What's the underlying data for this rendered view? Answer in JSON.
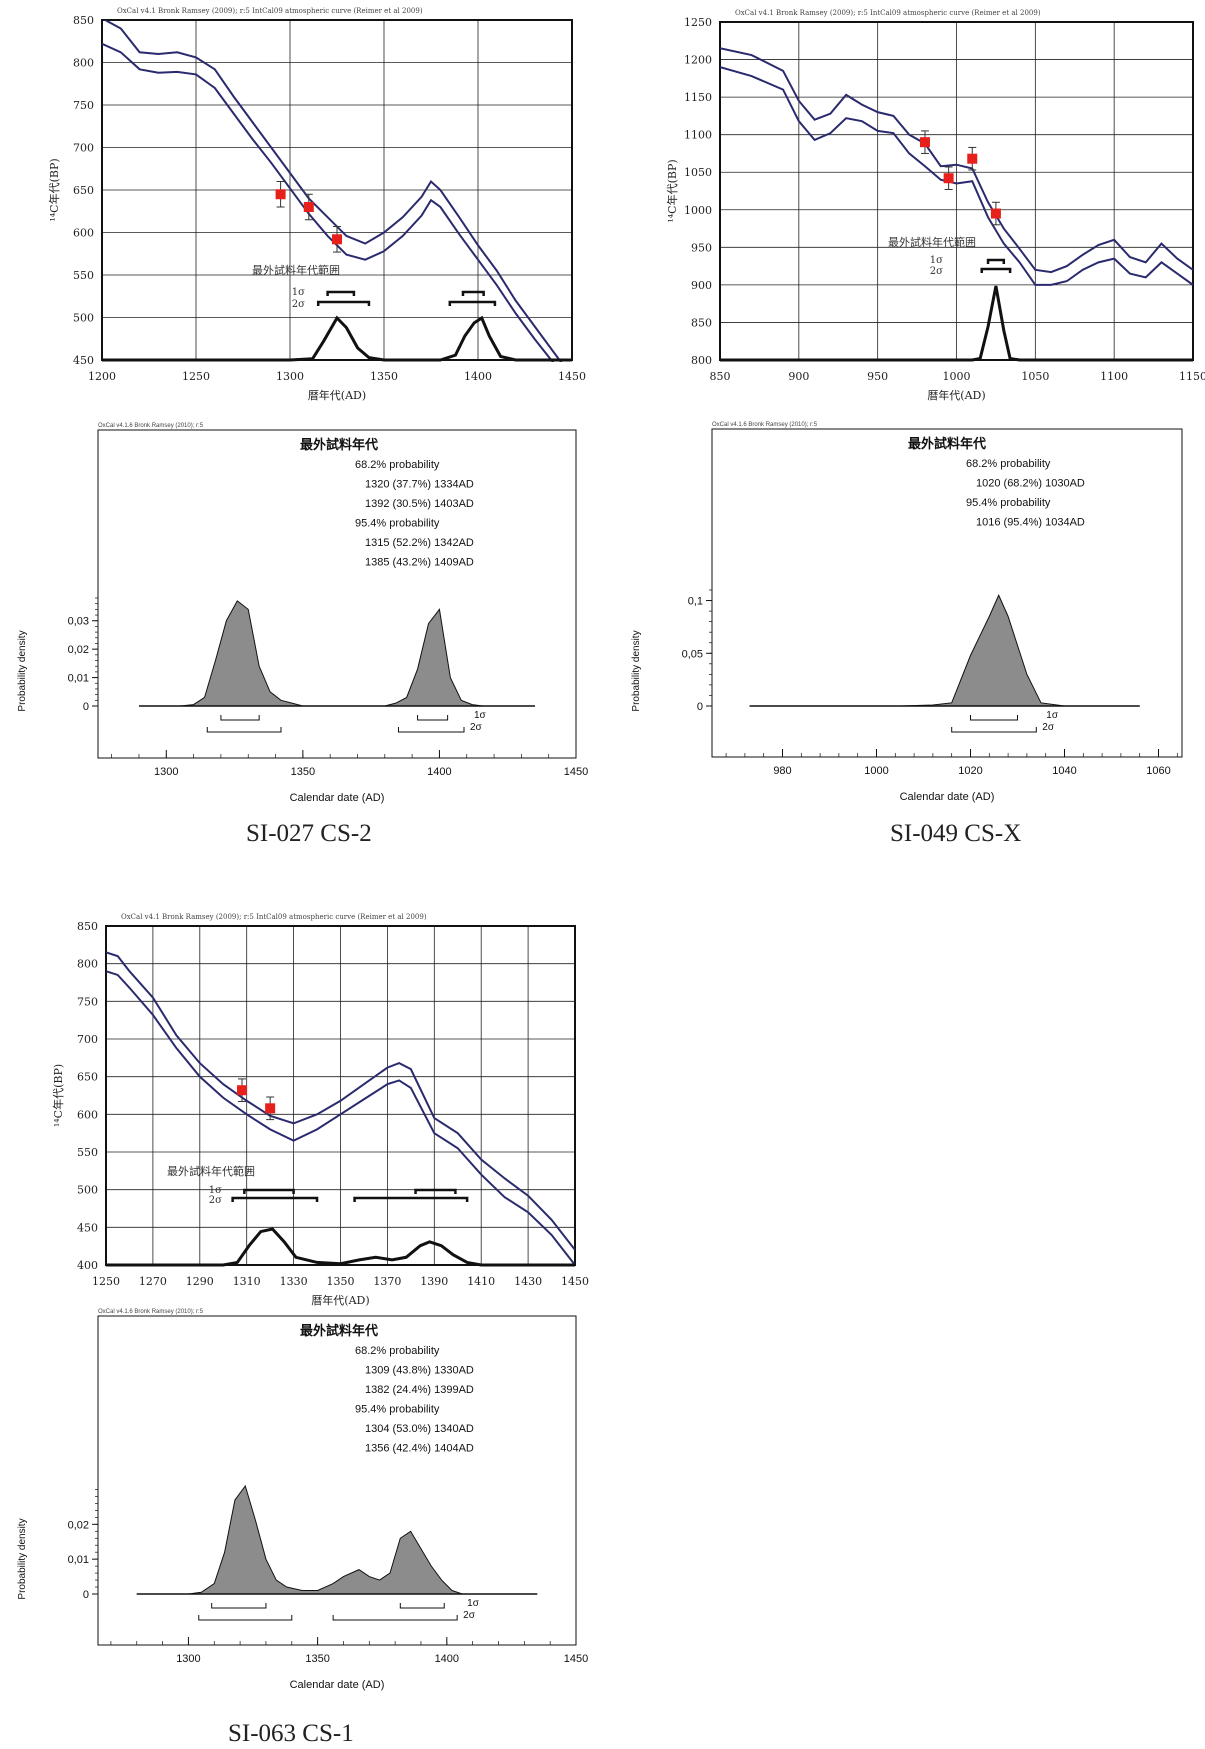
{
  "captions": [
    "SI-027 CS-2",
    "SI-049 CS-X",
    "SI-063 CS-1"
  ],
  "chart_data": [
    {
      "type": "line",
      "sample": "SI-027 CS-2",
      "header_note": "OxCal v4.1 Bronk Ramsey (2009); r:5 IntCal09 atmospheric curve (Reimer et al 2009)",
      "xlabel": "暦年代(AD)",
      "ylabel": "¹⁴C年代(BP)",
      "xlim": [
        1200,
        1450
      ],
      "ylim": [
        450,
        850
      ],
      "xticks": [
        1200,
        1250,
        1300,
        1350,
        1400,
        1450
      ],
      "yticks": [
        450,
        500,
        550,
        600,
        650,
        700,
        750,
        800,
        850
      ],
      "grid": true,
      "range_label": "最外試料年代範囲",
      "sigma_labels": [
        "1σ",
        "2σ"
      ],
      "series": [
        {
          "x": [
            1200,
            1210,
            1220,
            1230,
            1240,
            1250,
            1260,
            1270,
            1280,
            1290,
            1300,
            1310,
            1320,
            1330,
            1340,
            1350,
            1360,
            1370,
            1375,
            1380,
            1390,
            1400,
            1410,
            1420,
            1430,
            1440,
            1450
          ],
          "y": [
            852,
            840,
            812,
            810,
            812,
            806,
            792,
            760,
            730,
            700,
            670,
            640,
            618,
            596,
            587,
            600,
            618,
            642,
            660,
            650,
            618,
            585,
            555,
            520,
            490,
            460,
            430
          ]
        },
        {
          "x": [
            1200,
            1210,
            1220,
            1230,
            1240,
            1250,
            1260,
            1270,
            1280,
            1290,
            1300,
            1310,
            1320,
            1330,
            1340,
            1350,
            1360,
            1370,
            1375,
            1380,
            1390,
            1400,
            1410,
            1420,
            1430,
            1440,
            1450
          ],
          "y": [
            822,
            812,
            792,
            788,
            789,
            786,
            770,
            740,
            710,
            682,
            652,
            622,
            596,
            574,
            568,
            578,
            596,
            620,
            638,
            630,
            598,
            568,
            538,
            505,
            475,
            447,
            420
          ]
        }
      ],
      "samples": [
        {
          "x": 1295,
          "y": 645,
          "err": 15
        },
        {
          "x": 1310,
          "y": 630,
          "err": 15
        },
        {
          "x": 1325,
          "y": 592,
          "err": 15
        }
      ],
      "sigma1_ranges": [
        [
          1320,
          1334
        ],
        [
          1392,
          1403
        ]
      ],
      "sigma2_ranges": [
        [
          1315,
          1342
        ],
        [
          1385,
          1409
        ]
      ],
      "density_curve": {
        "x": [
          1200,
          1300,
          1312,
          1318,
          1325,
          1330,
          1336,
          1342,
          1350,
          1360,
          1380,
          1388,
          1393,
          1398,
          1402,
          1406,
          1412,
          1420,
          1450
        ],
        "y": [
          0,
          0,
          0.001,
          0.016,
          0.035,
          0.027,
          0.01,
          0.002,
          0,
          0,
          0,
          0.004,
          0.02,
          0.031,
          0.035,
          0.02,
          0.003,
          0,
          0
        ]
      }
    },
    {
      "type": "area",
      "sample": "SI-027 CS-2",
      "header_note": "OxCal v4.1.6 Bronk Ramsey (2010); r:5",
      "title": "最外試料年代",
      "prob_lines": [
        "68.2% probability",
        "1320 (37.7%) 1334AD",
        "1392 (30.5%) 1403AD",
        "95.4% probability",
        "1315 (52.2%) 1342AD",
        "1385 (43.2%) 1409AD"
      ],
      "xlabel": "Calendar date (AD)",
      "ylabel": "Probability density",
      "xlim": [
        1275,
        1450
      ],
      "xticks": [
        1300,
        1350,
        1400,
        1450
      ],
      "yticks": [
        0,
        0.01,
        0.02,
        0.03
      ],
      "ytick_labels": [
        "0",
        "0,01",
        "0,02",
        "0,03"
      ],
      "ylim": [
        0,
        0.038
      ],
      "sigma_labels": [
        "1σ",
        "2σ"
      ],
      "x": [
        1290,
        1305,
        1310,
        1314,
        1318,
        1322,
        1326,
        1330,
        1334,
        1338,
        1342,
        1346,
        1350,
        1370,
        1380,
        1384,
        1388,
        1392,
        1396,
        1400,
        1404,
        1408,
        1412,
        1416,
        1435
      ],
      "values": [
        0,
        0,
        0.0005,
        0.003,
        0.016,
        0.03,
        0.037,
        0.034,
        0.014,
        0.005,
        0.002,
        0.001,
        0,
        0,
        0,
        0.001,
        0.003,
        0.013,
        0.029,
        0.034,
        0.01,
        0.002,
        0.0005,
        0,
        0
      ],
      "sigma1_ranges": [
        [
          1320,
          1334
        ],
        [
          1392,
          1403
        ]
      ],
      "sigma2_ranges": [
        [
          1315,
          1342
        ],
        [
          1385,
          1409
        ]
      ]
    },
    {
      "type": "line",
      "sample": "SI-049 CS-X",
      "header_note": "OxCal v4.1 Bronk Ramsey (2009); r:5 IntCal09 atmospheric curve (Reimer et al 2009)",
      "xlabel": "暦年代(AD)",
      "ylabel": "¹⁴C年代(BP)",
      "xlim": [
        850,
        1150
      ],
      "ylim": [
        800,
        1250
      ],
      "xticks": [
        850,
        900,
        950,
        1000,
        1050,
        1100,
        1150
      ],
      "yticks": [
        800,
        850,
        900,
        950,
        1000,
        1050,
        1100,
        1150,
        1200,
        1250
      ],
      "grid": true,
      "range_label": "最外試料年代範囲",
      "sigma_labels": [
        "1σ",
        "2σ"
      ],
      "series": [
        {
          "x": [
            850,
            870,
            890,
            900,
            910,
            920,
            930,
            940,
            950,
            960,
            970,
            980,
            990,
            1000,
            1010,
            1020,
            1030,
            1040,
            1050,
            1060,
            1070,
            1080,
            1090,
            1100,
            1110,
            1120,
            1130,
            1140,
            1150
          ],
          "y": [
            1215,
            1206,
            1185,
            1145,
            1120,
            1128,
            1153,
            1140,
            1130,
            1125,
            1100,
            1088,
            1058,
            1060,
            1055,
            1010,
            975,
            948,
            920,
            917,
            925,
            940,
            953,
            960,
            937,
            930,
            955,
            935,
            920
          ]
        },
        {
          "x": [
            850,
            870,
            890,
            900,
            910,
            920,
            930,
            940,
            950,
            960,
            970,
            980,
            990,
            1000,
            1010,
            1020,
            1030,
            1040,
            1050,
            1060,
            1070,
            1080,
            1090,
            1100,
            1110,
            1120,
            1130,
            1140,
            1150
          ],
          "y": [
            1190,
            1178,
            1160,
            1118,
            1093,
            1102,
            1122,
            1118,
            1105,
            1102,
            1075,
            1058,
            1040,
            1035,
            1038,
            990,
            955,
            930,
            900,
            900,
            905,
            920,
            930,
            935,
            915,
            910,
            930,
            915,
            900
          ]
        }
      ],
      "samples": [
        {
          "x": 980,
          "y": 1090,
          "err": 15
        },
        {
          "x": 995,
          "y": 1042,
          "err": 15
        },
        {
          "x": 1010,
          "y": 1068,
          "err": 15
        },
        {
          "x": 1025,
          "y": 995,
          "err": 15
        }
      ],
      "sigma1_ranges": [
        [
          1020,
          1030
        ]
      ],
      "sigma2_ranges": [
        [
          1016,
          1034
        ]
      ],
      "density_curve": {
        "x": [
          850,
          1010,
          1015,
          1020,
          1025,
          1030,
          1034,
          1040,
          1150
        ],
        "y": [
          0,
          0,
          0.002,
          0.045,
          0.1,
          0.04,
          0.002,
          0,
          0
        ]
      }
    },
    {
      "type": "area",
      "sample": "SI-049 CS-X",
      "header_note": "OxCal v4.1.6 Bronk Ramsey (2010); r:5",
      "title": "最外試料年代",
      "prob_lines": [
        "68.2% probability",
        "1020 (68.2%) 1030AD",
        "95.4% probability",
        "1016 (95.4%) 1034AD"
      ],
      "xlabel": "Calendar date (AD)",
      "ylabel": "Probability density",
      "xlim": [
        965,
        1065
      ],
      "xticks": [
        980,
        1000,
        1020,
        1040,
        1060
      ],
      "yticks": [
        0,
        0.05,
        0.1
      ],
      "ytick_labels": [
        "0",
        "0,05",
        "0,1"
      ],
      "ylim": [
        0,
        0.11
      ],
      "sigma_labels": [
        "1σ",
        "2σ"
      ],
      "x": [
        973,
        1005,
        1012,
        1016,
        1020,
        1024,
        1026,
        1028,
        1032,
        1035,
        1040,
        1056
      ],
      "values": [
        0,
        0,
        0.001,
        0.003,
        0.048,
        0.085,
        0.105,
        0.085,
        0.03,
        0.003,
        0,
        0
      ],
      "sigma1_ranges": [
        [
          1020,
          1030
        ]
      ],
      "sigma2_ranges": [
        [
          1016,
          1034
        ]
      ]
    },
    {
      "type": "line",
      "sample": "SI-063 CS-1",
      "header_note": "OxCal v4.1 Bronk Ramsey (2009); r:5 IntCal09 atmospheric curve (Reimer et al 2009)",
      "xlabel": "暦年代(AD)",
      "ylabel": "¹⁴C年代(BP)",
      "xlim": [
        1250,
        1450
      ],
      "ylim": [
        400,
        850
      ],
      "xticks": [
        1250,
        1270,
        1290,
        1310,
        1330,
        1350,
        1370,
        1390,
        1410,
        1430,
        1450
      ],
      "yticks": [
        400,
        450,
        500,
        550,
        600,
        650,
        700,
        750,
        800,
        850
      ],
      "grid": true,
      "range_label": "最外試料年代範囲",
      "sigma_labels": [
        "1σ",
        "2σ"
      ],
      "series": [
        {
          "x": [
            1250,
            1255,
            1260,
            1270,
            1280,
            1290,
            1300,
            1310,
            1320,
            1330,
            1340,
            1350,
            1360,
            1370,
            1375,
            1380,
            1390,
            1400,
            1410,
            1420,
            1430,
            1440,
            1450
          ],
          "y": [
            815,
            810,
            790,
            755,
            705,
            668,
            640,
            618,
            598,
            588,
            600,
            618,
            640,
            662,
            668,
            660,
            595,
            575,
            540,
            515,
            492,
            460,
            420
          ]
        },
        {
          "x": [
            1250,
            1255,
            1260,
            1270,
            1280,
            1290,
            1300,
            1310,
            1320,
            1330,
            1340,
            1350,
            1360,
            1370,
            1375,
            1380,
            1390,
            1400,
            1410,
            1420,
            1430,
            1440,
            1450
          ],
          "y": [
            790,
            785,
            768,
            732,
            688,
            650,
            622,
            600,
            580,
            565,
            580,
            600,
            620,
            640,
            645,
            635,
            575,
            555,
            520,
            490,
            470,
            440,
            400
          ]
        }
      ],
      "samples": [
        {
          "x": 1308,
          "y": 632,
          "err": 15
        },
        {
          "x": 1320,
          "y": 608,
          "err": 15
        }
      ],
      "sigma1_ranges": [
        [
          1309,
          1330
        ],
        [
          1382,
          1399
        ]
      ],
      "sigma2_ranges": [
        [
          1304,
          1340
        ],
        [
          1356,
          1404
        ]
      ],
      "density_curve": {
        "x": [
          1250,
          1300,
          1306,
          1311,
          1316,
          1321,
          1326,
          1331,
          1340,
          1350,
          1358,
          1365,
          1372,
          1378,
          1384,
          1388,
          1393,
          1398,
          1404,
          1410,
          1450
        ],
        "y": [
          0,
          0,
          0.002,
          0.015,
          0.026,
          0.028,
          0.018,
          0.006,
          0.002,
          0.001,
          0.004,
          0.006,
          0.004,
          0.006,
          0.015,
          0.018,
          0.015,
          0.008,
          0.002,
          0,
          0
        ]
      }
    },
    {
      "type": "area",
      "sample": "SI-063 CS-1",
      "header_note": "OxCal v4.1.6 Bronk Ramsey (2010); r:5",
      "title": "最外試料年代",
      "prob_lines": [
        "68.2% probability",
        "1309 (43.8%) 1330AD",
        "1382 (24.4%) 1399AD",
        "95.4% probability",
        "1304 (53.0%) 1340AD",
        "1356 (42.4%) 1404AD"
      ],
      "xlabel": "Calendar date (AD)",
      "ylabel": "Probability density",
      "xlim": [
        1265,
        1450
      ],
      "xticks": [
        1300,
        1350,
        1400,
        1450
      ],
      "yticks": [
        0,
        0.01,
        0.02
      ],
      "ytick_labels": [
        "0",
        "0,01",
        "0,02"
      ],
      "ylim": [
        0,
        0.031
      ],
      "sigma_labels": [
        "1σ",
        "2σ"
      ],
      "x": [
        1280,
        1300,
        1305,
        1310,
        1314,
        1318,
        1322,
        1326,
        1330,
        1334,
        1338,
        1344,
        1350,
        1356,
        1360,
        1366,
        1370,
        1374,
        1378,
        1382,
        1386,
        1390,
        1394,
        1398,
        1402,
        1406,
        1410,
        1435
      ],
      "values": [
        0,
        0,
        0.0005,
        0.003,
        0.012,
        0.027,
        0.031,
        0.021,
        0.01,
        0.004,
        0.002,
        0.001,
        0.001,
        0.003,
        0.005,
        0.007,
        0.005,
        0.004,
        0.006,
        0.016,
        0.018,
        0.013,
        0.008,
        0.004,
        0.001,
        0,
        0,
        0
      ],
      "sigma1_ranges": [
        [
          1309,
          1330
        ],
        [
          1382,
          1399
        ]
      ],
      "sigma2_ranges": [
        [
          1304,
          1340
        ],
        [
          1356,
          1404
        ]
      ]
    }
  ]
}
